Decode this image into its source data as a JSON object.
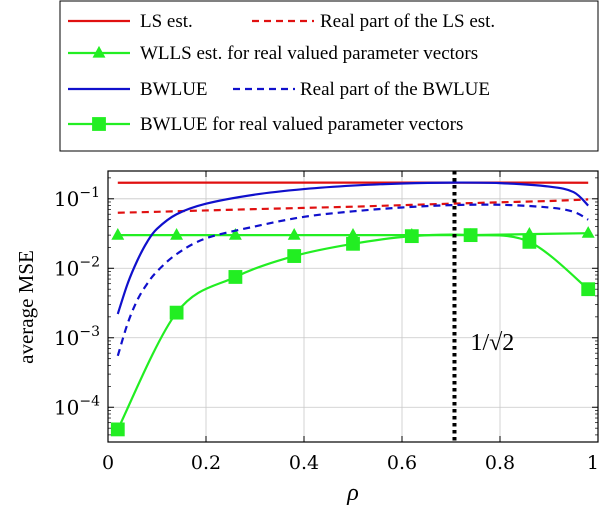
{
  "chart_data": {
    "type": "line",
    "xlabel": "ρ",
    "ylabel": "average MSE",
    "xlim": [
      0,
      1
    ],
    "ylim_log10": [
      -4.5,
      -0.6
    ],
    "y_scale": "log",
    "grid": true,
    "legend_placement": "above plot",
    "x_ticks": [
      {
        "value": 0,
        "label": "0"
      },
      {
        "value": 0.2,
        "label": "0.2"
      },
      {
        "value": 0.4,
        "label": "0.4"
      },
      {
        "value": 0.6,
        "label": "0.6"
      },
      {
        "value": 0.8,
        "label": "0.8"
      },
      {
        "value": 1,
        "label": "1"
      }
    ],
    "y_ticks": [
      {
        "exp": -1,
        "base": "10",
        "sup": "−1"
      },
      {
        "exp": -2,
        "base": "10",
        "sup": "−2"
      },
      {
        "exp": -3,
        "base": "10",
        "sup": "−3"
      },
      {
        "exp": -4,
        "base": "10",
        "sup": "−4"
      }
    ],
    "vline": {
      "x": 0.7071,
      "label": "1/√2",
      "color": "#000000"
    },
    "series": [
      {
        "name": "LS est.",
        "color": "#e01010",
        "dash": false,
        "marker": "none",
        "x": [
          0.02,
          0.2,
          0.4,
          0.6,
          0.8,
          0.98
        ],
        "y": [
          0.17,
          0.171,
          0.171,
          0.171,
          0.171,
          0.17
        ]
      },
      {
        "name": "Real part of the LS est.",
        "color": "#e01010",
        "dash": true,
        "marker": "none",
        "x": [
          0.02,
          0.1,
          0.2,
          0.3,
          0.4,
          0.5,
          0.6,
          0.7,
          0.8,
          0.9,
          0.98
        ],
        "y": [
          0.063,
          0.065,
          0.068,
          0.071,
          0.074,
          0.077,
          0.081,
          0.085,
          0.089,
          0.093,
          0.098
        ]
      },
      {
        "name": "WLLS est. for real valued parameter vectors",
        "color": "#22ee22",
        "dash": false,
        "marker": "triangle",
        "x": [
          0.02,
          0.14,
          0.26,
          0.38,
          0.5,
          0.62,
          0.74,
          0.86,
          0.98
        ],
        "y": [
          0.03,
          0.03,
          0.03,
          0.03,
          0.03,
          0.03,
          0.03,
          0.031,
          0.032
        ]
      },
      {
        "name": "BWLUE",
        "color": "#1010cc",
        "dash": false,
        "marker": "none",
        "x": [
          0.02,
          0.04,
          0.06,
          0.08,
          0.1,
          0.14,
          0.2,
          0.3,
          0.4,
          0.5,
          0.6,
          0.7,
          0.8,
          0.9,
          0.95,
          0.98
        ],
        "y": [
          0.0022,
          0.006,
          0.013,
          0.024,
          0.037,
          0.06,
          0.085,
          0.115,
          0.138,
          0.155,
          0.166,
          0.171,
          0.168,
          0.15,
          0.125,
          0.08
        ]
      },
      {
        "name": "Real part of the BWLUE",
        "color": "#1010cc",
        "dash": true,
        "marker": "none",
        "x": [
          0.02,
          0.04,
          0.06,
          0.08,
          0.1,
          0.14,
          0.2,
          0.3,
          0.4,
          0.5,
          0.6,
          0.7,
          0.8,
          0.9,
          0.95,
          0.98
        ],
        "y": [
          0.00055,
          0.0016,
          0.0035,
          0.006,
          0.009,
          0.016,
          0.027,
          0.04,
          0.055,
          0.066,
          0.075,
          0.081,
          0.082,
          0.075,
          0.065,
          0.05
        ]
      },
      {
        "name": "BWLUE for real valued parameter vectors",
        "color": "#22ee22",
        "dash": false,
        "marker": "square",
        "x": [
          0.02,
          0.14,
          0.26,
          0.38,
          0.5,
          0.62,
          0.74,
          0.86,
          0.98
        ],
        "y": [
          4.8e-05,
          0.0023,
          0.0075,
          0.015,
          0.0225,
          0.029,
          0.03,
          0.024,
          0.005
        ]
      }
    ]
  }
}
